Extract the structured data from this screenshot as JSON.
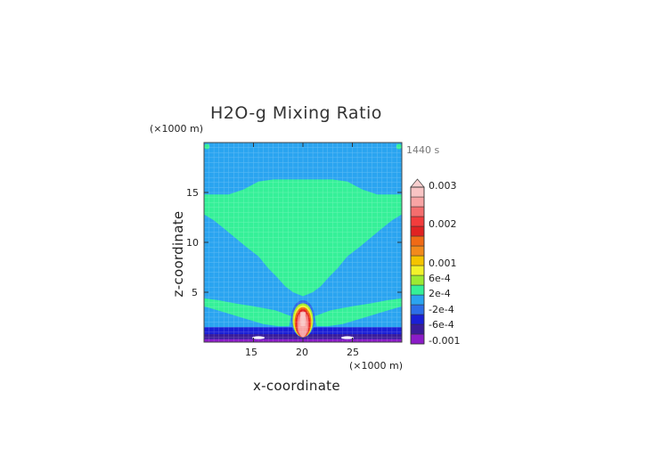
{
  "chart_data": {
    "type": "heatmap",
    "title": "H2O-g Mixing Ratio",
    "time_label": "1440 s",
    "xlabel": "x-coordinate",
    "ylabel": "z-coordinate",
    "x_unit": "(×1000 m)",
    "y_unit": "(×1000 m)",
    "xlim": [
      10,
      30
    ],
    "ylim": [
      0,
      20
    ],
    "x_ticks": [
      "15",
      "20",
      "25"
    ],
    "x_tick_values": [
      15,
      20,
      25
    ],
    "y_ticks": [
      "5",
      "10",
      "15"
    ],
    "y_tick_values": [
      5,
      10,
      15
    ],
    "colorbar": {
      "colors": [
        "#8b1cc8",
        "#3a1c9a",
        "#1a1fd6",
        "#2c6de8",
        "#2aa4f0",
        "#35f098",
        "#9cea32",
        "#f2f22a",
        "#f5c400",
        "#f28a1c",
        "#f06a16",
        "#e02222",
        "#f23c3c",
        "#f46e6e",
        "#f8a4a4",
        "#f9c4c4"
      ],
      "labels": [
        "0.003",
        "0.002",
        "0.001",
        "6e-4",
        "2e-4",
        "-2e-4",
        "-6e-4",
        "-0.001"
      ]
    },
    "regions": [
      {
        "level": "background",
        "color": "#2aa4f0"
      },
      {
        "level": "upper-plateau",
        "color": "#35f098"
      },
      {
        "level": "lower-layer",
        "color": "#1a1fd6"
      },
      {
        "level": "surface",
        "color": "#8b1cc8"
      },
      {
        "level": "plume-center-x",
        "value": 20
      },
      {
        "level": "plume-top-z",
        "value": 4
      }
    ]
  }
}
